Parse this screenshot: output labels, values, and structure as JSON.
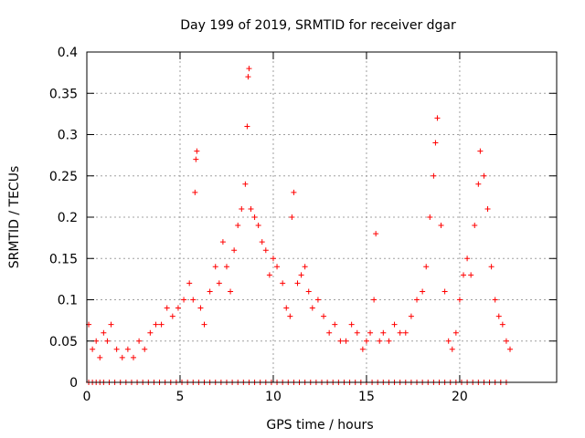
{
  "chart_data": {
    "type": "scatter",
    "title": "Day 199 of 2019, SRMTID for receiver dgar",
    "xlabel": "GPS time / hours",
    "ylabel": "SRMTID / TECUs",
    "xlim": [
      0,
      25.2
    ],
    "ylim": [
      0,
      0.4
    ],
    "x_ticks": [
      0,
      5,
      10,
      15,
      20
    ],
    "x_tick_labels": [
      "0",
      "5",
      "10",
      "15",
      "20"
    ],
    "y_ticks": [
      0,
      0.05,
      0.1,
      0.15,
      0.2,
      0.25,
      0.3,
      0.35,
      0.4
    ],
    "y_tick_labels": [
      "0",
      "0.05",
      "0.1",
      "0.15",
      "0.2",
      "0.25",
      "0.3",
      "0.35",
      "0.4"
    ],
    "grid": true,
    "marker": "+",
    "marker_color": "#ff0000",
    "series": [
      {
        "name": "SRMTID",
        "points": [
          [
            0.1,
            0.07
          ],
          [
            0.3,
            0.04
          ],
          [
            0.5,
            0.05
          ],
          [
            0.7,
            0.03
          ],
          [
            0.9,
            0.06
          ],
          [
            1.1,
            0.05
          ],
          [
            1.3,
            0.07
          ],
          [
            1.6,
            0.04
          ],
          [
            1.9,
            0.03
          ],
          [
            2.2,
            0.04
          ],
          [
            2.5,
            0.03
          ],
          [
            2.8,
            0.05
          ],
          [
            3.1,
            0.04
          ],
          [
            3.4,
            0.06
          ],
          [
            3.7,
            0.07
          ],
          [
            4.0,
            0.07
          ],
          [
            4.3,
            0.09
          ],
          [
            4.6,
            0.08
          ],
          [
            4.9,
            0.09
          ],
          [
            5.2,
            0.1
          ],
          [
            5.5,
            0.12
          ],
          [
            5.7,
            0.1
          ],
          [
            5.8,
            0.23
          ],
          [
            5.85,
            0.27
          ],
          [
            5.9,
            0.28
          ],
          [
            6.1,
            0.09
          ],
          [
            6.3,
            0.07
          ],
          [
            6.6,
            0.11
          ],
          [
            6.9,
            0.14
          ],
          [
            7.1,
            0.12
          ],
          [
            7.3,
            0.17
          ],
          [
            7.5,
            0.14
          ],
          [
            7.7,
            0.11
          ],
          [
            7.9,
            0.16
          ],
          [
            8.1,
            0.19
          ],
          [
            8.3,
            0.21
          ],
          [
            8.5,
            0.24
          ],
          [
            8.6,
            0.31
          ],
          [
            8.65,
            0.37
          ],
          [
            8.7,
            0.38
          ],
          [
            8.8,
            0.21
          ],
          [
            9.0,
            0.2
          ],
          [
            9.2,
            0.19
          ],
          [
            9.4,
            0.17
          ],
          [
            9.6,
            0.16
          ],
          [
            9.8,
            0.13
          ],
          [
            10.0,
            0.15
          ],
          [
            10.2,
            0.14
          ],
          [
            10.5,
            0.12
          ],
          [
            10.7,
            0.09
          ],
          [
            10.9,
            0.08
          ],
          [
            11.0,
            0.2
          ],
          [
            11.1,
            0.23
          ],
          [
            11.3,
            0.12
          ],
          [
            11.5,
            0.13
          ],
          [
            11.7,
            0.14
          ],
          [
            11.9,
            0.11
          ],
          [
            12.1,
            0.09
          ],
          [
            12.4,
            0.1
          ],
          [
            12.7,
            0.08
          ],
          [
            13.0,
            0.06
          ],
          [
            13.3,
            0.07
          ],
          [
            13.6,
            0.05
          ],
          [
            13.9,
            0.05
          ],
          [
            14.2,
            0.07
          ],
          [
            14.5,
            0.06
          ],
          [
            14.8,
            0.04
          ],
          [
            15.0,
            0.05
          ],
          [
            15.2,
            0.06
          ],
          [
            15.4,
            0.1
          ],
          [
            15.5,
            0.18
          ],
          [
            15.7,
            0.05
          ],
          [
            15.9,
            0.06
          ],
          [
            16.2,
            0.05
          ],
          [
            16.5,
            0.07
          ],
          [
            16.8,
            0.06
          ],
          [
            17.1,
            0.06
          ],
          [
            17.4,
            0.08
          ],
          [
            17.7,
            0.1
          ],
          [
            18.0,
            0.11
          ],
          [
            18.2,
            0.14
          ],
          [
            18.4,
            0.2
          ],
          [
            18.6,
            0.25
          ],
          [
            18.7,
            0.29
          ],
          [
            18.8,
            0.32
          ],
          [
            19.0,
            0.19
          ],
          [
            19.2,
            0.11
          ],
          [
            19.4,
            0.05
          ],
          [
            19.6,
            0.04
          ],
          [
            19.8,
            0.06
          ],
          [
            20.0,
            0.1
          ],
          [
            20.2,
            0.13
          ],
          [
            20.4,
            0.15
          ],
          [
            20.6,
            0.13
          ],
          [
            20.8,
            0.19
          ],
          [
            21.0,
            0.24
          ],
          [
            21.1,
            0.28
          ],
          [
            21.3,
            0.25
          ],
          [
            21.5,
            0.21
          ],
          [
            21.7,
            0.14
          ],
          [
            21.9,
            0.1
          ],
          [
            22.1,
            0.08
          ],
          [
            22.3,
            0.07
          ],
          [
            22.5,
            0.05
          ],
          [
            22.7,
            0.04
          ]
        ]
      }
    ],
    "zero_markers_x": [
      0.1,
      0.3,
      0.5,
      0.7,
      0.9,
      1.2,
      1.5,
      1.8,
      2.1,
      2.4,
      2.7,
      3.0,
      3.3,
      3.6,
      3.9,
      4.2,
      4.5,
      4.8,
      5.1,
      5.4,
      5.7,
      6.0,
      6.3,
      6.6,
      6.9,
      7.2,
      7.5,
      7.8,
      8.1,
      8.4,
      8.7,
      9.0,
      9.3,
      9.6,
      9.9,
      10.2,
      10.5,
      10.8,
      11.1,
      11.4,
      11.7,
      12.0,
      12.3,
      12.6,
      12.9,
      13.2,
      13.5,
      13.8,
      14.1,
      14.4,
      14.7,
      15.0,
      15.3,
      15.6,
      15.9,
      16.2,
      16.5,
      16.8,
      17.1,
      17.4,
      17.7,
      18.0,
      18.3,
      18.6,
      18.9,
      19.2,
      19.5,
      19.8,
      20.1,
      20.4,
      20.7,
      21.0,
      21.3,
      21.6,
      21.9,
      22.2,
      22.5
    ]
  }
}
